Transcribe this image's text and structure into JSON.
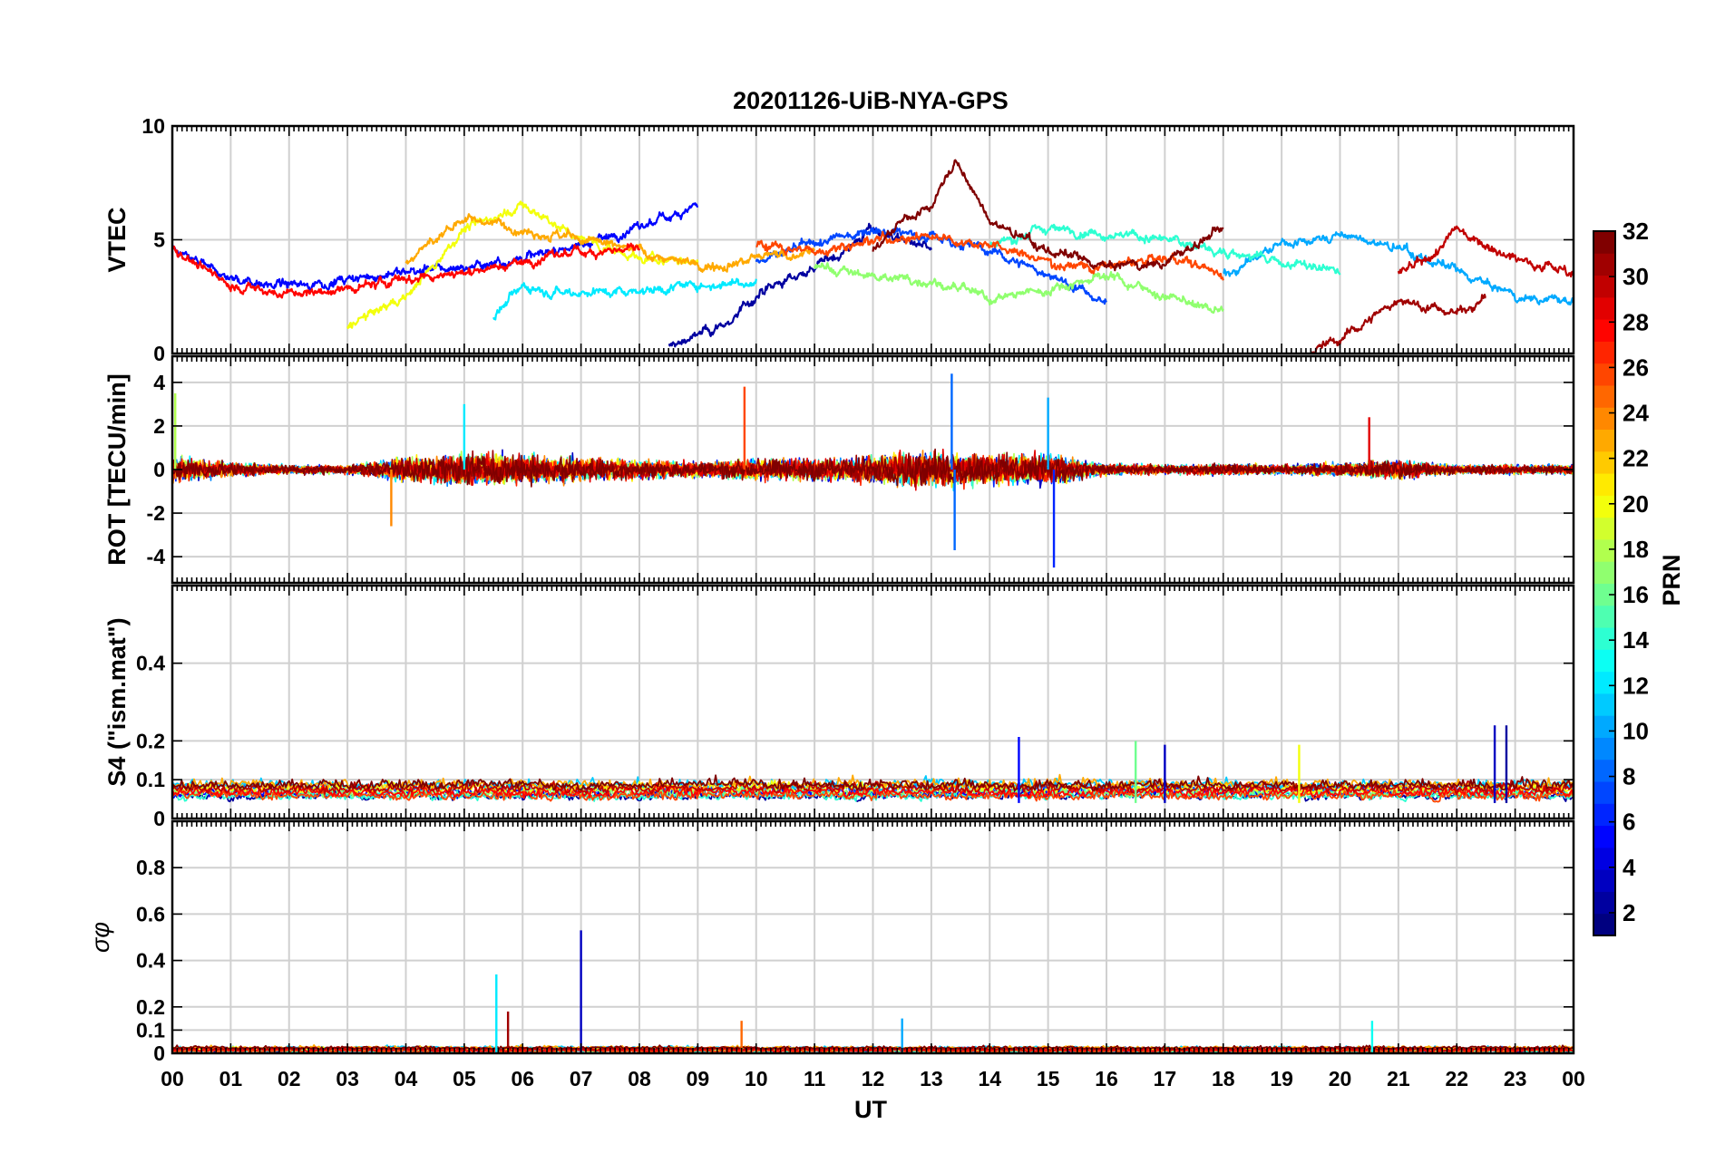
{
  "figure": {
    "title": "20201126-UiB-NYA-GPS",
    "xlabel": "UT",
    "colorbar": {
      "label": "PRN",
      "min": 1,
      "max": 32,
      "ticks": [
        "2",
        "4",
        "6",
        "8",
        "10",
        "12",
        "14",
        "16",
        "18",
        "20",
        "22",
        "24",
        "26",
        "28",
        "30",
        "32"
      ],
      "colormap": "jet"
    }
  },
  "chart_data": [
    {
      "type": "line",
      "panel": "vtec",
      "ylabel": "VTEC",
      "xlim": [
        0,
        24
      ],
      "ylim": [
        0,
        10
      ],
      "yticks": [
        0,
        5,
        10
      ],
      "ytick_labels": [
        "0",
        "5",
        "10"
      ],
      "xtick_labels": [
        "00",
        "01",
        "02",
        "03",
        "04",
        "05",
        "06",
        "07",
        "08",
        "09",
        "10",
        "11",
        "12",
        "13",
        "14",
        "15",
        "16",
        "17",
        "18",
        "19",
        "20",
        "21",
        "22",
        "23",
        "00"
      ],
      "grid": true,
      "color_by": "PRN",
      "series_note_values": {
        "baseline": 3.5,
        "daytime_peak": 5.0,
        "max": 8.5
      },
      "series": [
        {
          "prn": 2,
          "x": [
            8.5,
            9,
            9.5,
            10,
            10.5,
            11,
            11.5,
            12,
            12.5,
            13
          ],
          "y": [
            0.3,
            0.8,
            1.3,
            2.5,
            3.2,
            3.8,
            4.5,
            5.5,
            5.0,
            4.6
          ]
        },
        {
          "prn": 5,
          "x": [
            0,
            1,
            2,
            3,
            4,
            5,
            6,
            7,
            8,
            9
          ],
          "y": [
            4.5,
            3.3,
            3.0,
            3.2,
            3.6,
            3.8,
            4.2,
            4.8,
            5.5,
            6.6
          ]
        },
        {
          "prn": 7,
          "x": [
            10,
            11,
            12,
            13,
            14,
            15,
            16
          ],
          "y": [
            4.0,
            4.8,
            5.5,
            5.2,
            4.5,
            3.5,
            2.2
          ]
        },
        {
          "prn": 10,
          "x": [
            18,
            19,
            20,
            21,
            22,
            23,
            24
          ],
          "y": [
            3.5,
            4.8,
            5.2,
            4.6,
            3.6,
            2.5,
            2.3
          ]
        },
        {
          "prn": 12,
          "x": [
            5.5,
            6,
            6.5,
            7,
            8,
            9,
            10
          ],
          "y": [
            1.6,
            3.0,
            2.8,
            2.7,
            2.8,
            3.0,
            3.2
          ]
        },
        {
          "prn": 14,
          "x": [
            14,
            15,
            16,
            17,
            18,
            19,
            20
          ],
          "y": [
            4.8,
            5.5,
            5.3,
            5.0,
            4.5,
            4.0,
            3.6
          ]
        },
        {
          "prn": 17,
          "x": [
            11,
            12,
            13,
            14,
            15,
            16,
            17,
            18
          ],
          "y": [
            3.8,
            3.4,
            3.2,
            2.4,
            2.8,
            3.5,
            2.5,
            1.8
          ]
        },
        {
          "prn": 20,
          "x": [
            3,
            4,
            5,
            6,
            7,
            8,
            9
          ],
          "y": [
            1.2,
            2.5,
            5.5,
            6.5,
            5.0,
            4.2,
            4.0
          ]
        },
        {
          "prn": 23,
          "x": [
            4,
            5,
            6,
            7,
            8,
            9,
            10,
            11
          ],
          "y": [
            4.0,
            6.0,
            5.5,
            5.0,
            4.5,
            3.8,
            4.2,
            4.5
          ]
        },
        {
          "prn": 26,
          "x": [
            10,
            11,
            12,
            13,
            14,
            15,
            16,
            17,
            18
          ],
          "y": [
            4.8,
            4.5,
            5.0,
            5.2,
            4.8,
            4.0,
            3.8,
            4.2,
            3.5
          ]
        },
        {
          "prn": 28,
          "x": [
            0,
            1,
            2,
            3,
            4,
            5,
            6,
            7,
            8
          ],
          "y": [
            4.6,
            3.0,
            2.6,
            2.8,
            3.3,
            3.6,
            4.0,
            4.5,
            4.6
          ]
        },
        {
          "prn": 30,
          "x": [
            21,
            21.5,
            22,
            22.5,
            23,
            23.5,
            24
          ],
          "y": [
            3.5,
            4.0,
            5.5,
            4.8,
            4.2,
            3.9,
            3.6
          ]
        },
        {
          "prn": 31,
          "x": [
            19.5,
            20,
            20.5,
            21,
            21.5,
            22,
            22.5
          ],
          "y": [
            0.1,
            0.6,
            1.5,
            2.4,
            2.0,
            1.8,
            2.5
          ]
        },
        {
          "prn": 32,
          "x": [
            12,
            12.5,
            13,
            13.4,
            14,
            15,
            16,
            17,
            18
          ],
          "y": [
            4.5,
            5.8,
            6.5,
            8.5,
            5.8,
            4.5,
            3.8,
            4.0,
            5.5
          ]
        }
      ]
    },
    {
      "type": "line",
      "panel": "rot",
      "ylabel": "ROT [TECU/min]",
      "xlim": [
        0,
        24
      ],
      "ylim": [
        -5.2,
        5.2
      ],
      "yticks": [
        -4,
        -2,
        0,
        2,
        4
      ],
      "ytick_labels": [
        "-4",
        "-2",
        "0",
        "2",
        "4"
      ],
      "grid": true,
      "color_by": "PRN",
      "envelope": {
        "x": [
          0,
          1,
          2,
          3,
          4,
          5,
          6,
          7,
          8,
          9,
          10,
          11,
          12,
          13,
          14,
          15,
          16,
          17,
          18,
          19,
          20,
          21,
          22,
          23,
          24
        ],
        "amplitude": [
          1.2,
          0.6,
          0.4,
          0.4,
          1.0,
          1.4,
          1.3,
          1.1,
          0.8,
          0.7,
          0.9,
          1.0,
          1.1,
          1.6,
          1.3,
          1.4,
          0.5,
          0.4,
          0.5,
          0.4,
          0.6,
          0.8,
          0.4,
          0.4,
          0.4
        ]
      },
      "spikes": [
        {
          "x": 0.05,
          "y": 3.5,
          "prn": 18
        },
        {
          "x": 3.75,
          "y": -2.6,
          "prn": 24
        },
        {
          "x": 5.0,
          "y": 3.0,
          "prn": 12
        },
        {
          "x": 9.8,
          "y": 3.8,
          "prn": 26
        },
        {
          "x": 13.35,
          "y": 4.4,
          "prn": 8
        },
        {
          "x": 13.4,
          "y": -3.7,
          "prn": 8
        },
        {
          "x": 15.0,
          "y": 3.3,
          "prn": 10
        },
        {
          "x": 15.1,
          "y": -4.5,
          "prn": 6
        },
        {
          "x": 20.5,
          "y": 2.4,
          "prn": 29
        }
      ]
    },
    {
      "type": "line",
      "panel": "s4",
      "ylabel": "S4 (\"ism.mat\")",
      "xlim": [
        0,
        24
      ],
      "ylim": [
        0,
        0.6
      ],
      "yticks": [
        0,
        0.1,
        0.2,
        0.4
      ],
      "ytick_labels": [
        "0",
        "0.1",
        "0.2",
        "0.4"
      ],
      "grid": true,
      "color_by": "PRN",
      "baseline_range": [
        0.04,
        0.12
      ],
      "spikes": [
        {
          "x": 14.5,
          "y": 0.21,
          "prn": 5
        },
        {
          "x": 16.5,
          "y": 0.2,
          "prn": 16
        },
        {
          "x": 17.0,
          "y": 0.19,
          "prn": 3
        },
        {
          "x": 19.3,
          "y": 0.19,
          "prn": 20
        },
        {
          "x": 22.65,
          "y": 0.24,
          "prn": 3
        },
        {
          "x": 22.85,
          "y": 0.24,
          "prn": 2
        }
      ]
    },
    {
      "type": "line",
      "panel": "sigma_phi",
      "ylabel": "σφ",
      "xlim": [
        0,
        24
      ],
      "ylim": [
        0,
        1.0
      ],
      "yticks": [
        0,
        0.1,
        0.2,
        0.4,
        0.6,
        0.8
      ],
      "ytick_labels": [
        "0",
        "0.1",
        "0.2",
        "0.4",
        "0.6",
        "0.8"
      ],
      "grid": true,
      "color_by": "PRN",
      "baseline_range": [
        0.0,
        0.04
      ],
      "spikes": [
        {
          "x": 5.55,
          "y": 0.34,
          "prn": 12
        },
        {
          "x": 5.75,
          "y": 0.18,
          "prn": 31
        },
        {
          "x": 7.0,
          "y": 0.53,
          "prn": 3
        },
        {
          "x": 9.75,
          "y": 0.14,
          "prn": 25
        },
        {
          "x": 12.5,
          "y": 0.15,
          "prn": 10
        },
        {
          "x": 20.55,
          "y": 0.14,
          "prn": 13
        }
      ]
    }
  ]
}
